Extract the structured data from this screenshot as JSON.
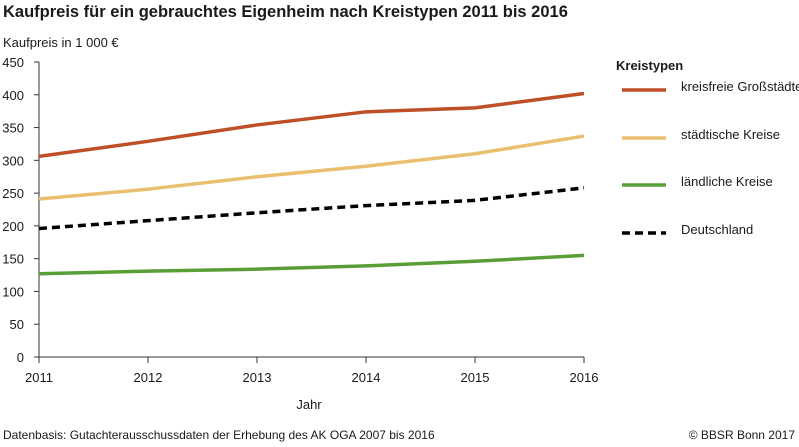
{
  "title": "Kaufpreis für ein gebrauchtes Eigenheim nach Kreistypen 2011 bis 2016",
  "footer": {
    "source": "Datenbasis: Gutachterausschussdaten der Erhebung des AK OGA 2007 bis 2016",
    "copyright": "© BBSR Bonn 2017"
  },
  "chart_data": {
    "type": "line",
    "title": "Kaufpreis für ein gebrauchtes Eigenheim nach Kreistypen 2011 bis 2016",
    "ylabel": "Kaufpreis in 1 000 €",
    "xlabel": "Jahr",
    "x": [
      2011,
      2012,
      2013,
      2014,
      2015,
      2016
    ],
    "ylim": [
      0,
      450
    ],
    "yticks": [
      0,
      50,
      100,
      150,
      200,
      250,
      300,
      350,
      400,
      450
    ],
    "grid": false,
    "legend_title": "Kreistypen",
    "legend_position": "right",
    "series": [
      {
        "name": "kreisfreie Großstädte",
        "color": "#bf4f26",
        "dash": "solid",
        "values": [
          306,
          329,
          354,
          374,
          380,
          402
        ]
      },
      {
        "name": "städtische Kreise",
        "color": "#e8c070",
        "dash": "solid",
        "values": [
          241,
          256,
          275,
          291,
          310,
          337
        ]
      },
      {
        "name": "ländliche Kreise",
        "color": "#5a9e37",
        "dash": "solid",
        "values": [
          127,
          131,
          134,
          139,
          146,
          155
        ]
      },
      {
        "name": "Deutschland",
        "color": "#000000",
        "dash": "dashed",
        "values": [
          196,
          208,
          220,
          231,
          239,
          258
        ]
      }
    ]
  }
}
